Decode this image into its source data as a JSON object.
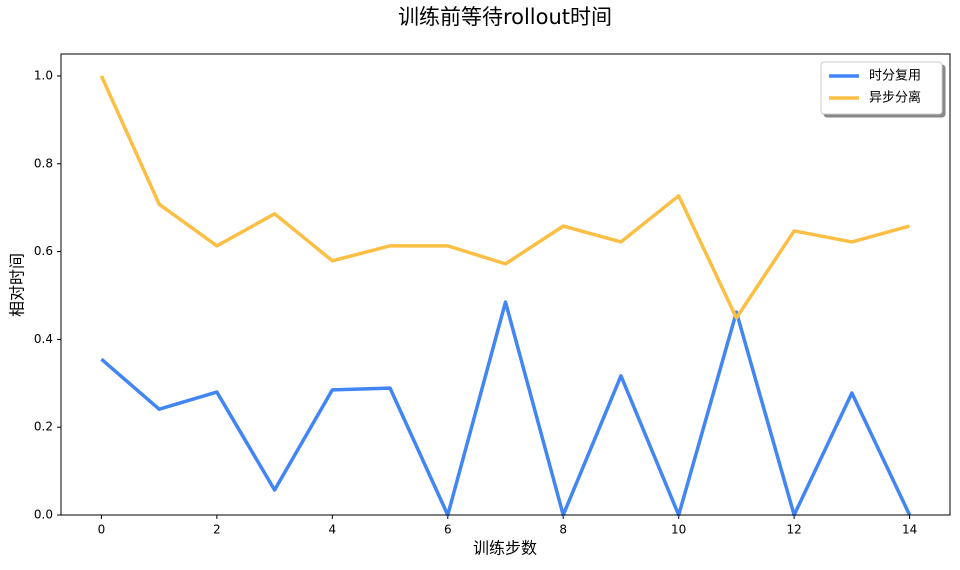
{
  "chart_data": {
    "type": "line",
    "title": "训练前等待rollout时间",
    "xlabel": "训练步数",
    "ylabel": "相对时间",
    "x": [
      0,
      1,
      2,
      3,
      4,
      5,
      6,
      7,
      8,
      9,
      10,
      11,
      12,
      13,
      14
    ],
    "series": [
      {
        "name": "时分复用",
        "color": "#4285f4",
        "values": [
          0.355,
          0.241,
          0.28,
          0.057,
          0.285,
          0.289,
          0,
          0.485,
          0,
          0.317,
          0,
          0.462,
          0,
          0.278,
          0
        ]
      },
      {
        "name": "异步分离",
        "color": "#fbbf45",
        "values": [
          1.0,
          0.708,
          0.613,
          0.686,
          0.579,
          0.613,
          0.613,
          0.572,
          0.658,
          0.622,
          0.727,
          0.449,
          0.647,
          0.622,
          0.658
        ]
      }
    ],
    "xlim": [
      -0.7,
      14.7
    ],
    "xticks": [
      0,
      2,
      4,
      6,
      8,
      10,
      12,
      14
    ],
    "ylim": [
      0,
      1.05
    ],
    "yticks": [
      {
        "value": 0,
        "label": "0.0"
      },
      0.2,
      0.4,
      0.6,
      0.8,
      {
        "value": 1,
        "label": "1.0"
      }
    ],
    "legend": "upper right"
  }
}
